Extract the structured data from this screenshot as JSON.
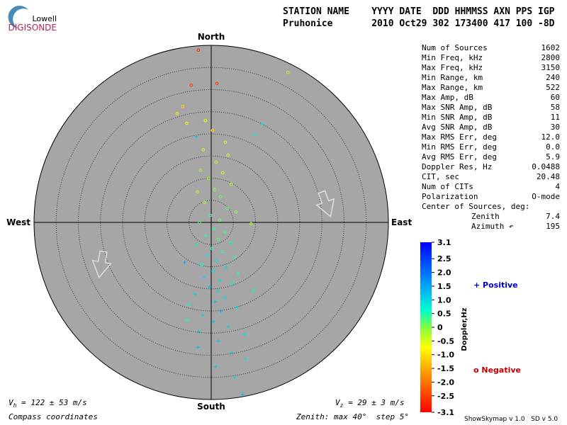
{
  "header": {
    "logo_top": "Lowell",
    "logo_bottom": "DIGISONDE",
    "columns_line": "STATION NAME    YYYY DATE  DDD HHMMSS AXN PPS IGP",
    "values_line": "Pruhonice       2010 Oct29 302 173400 417 100 -8D"
  },
  "skymap": {
    "north": "North",
    "south": "South",
    "east": "East",
    "west": "West",
    "zenith_max": 40,
    "zenith_step": 5,
    "sources": [
      {
        "e": -2.9,
        "n": 38.9,
        "d": -2.8,
        "m": "o"
      },
      {
        "e": -4.5,
        "n": 31,
        "d": -2.6,
        "m": "o"
      },
      {
        "e": 1.3,
        "n": 31.4,
        "d": -2.7,
        "m": "o"
      },
      {
        "e": 17.3,
        "n": 33.9,
        "d": -0.3,
        "m": "o"
      },
      {
        "e": -6.4,
        "n": 26.2,
        "d": -1.0,
        "m": "o"
      },
      {
        "e": -7.7,
        "n": 24.6,
        "d": -0.9,
        "m": "o"
      },
      {
        "e": -1.3,
        "n": 23,
        "d": -0.8,
        "m": "o"
      },
      {
        "e": -3.4,
        "n": 19.4,
        "d": 1.2,
        "m": "+"
      },
      {
        "e": 9.9,
        "n": 19.8,
        "d": 0.8,
        "m": "+"
      },
      {
        "e": 11.5,
        "n": 22.2,
        "d": 0.9,
        "m": "+"
      },
      {
        "e": 0.3,
        "n": 20.8,
        "d": -1.1,
        "m": "o"
      },
      {
        "e": -5.5,
        "n": 22.4,
        "d": -0.7,
        "m": "o"
      },
      {
        "e": 3.2,
        "n": 18.1,
        "d": -0.6,
        "m": "o"
      },
      {
        "e": 3.8,
        "n": 15.2,
        "d": -0.4,
        "m": "o"
      },
      {
        "e": -1.8,
        "n": 16.4,
        "d": -0.5,
        "m": "o"
      },
      {
        "e": 1.1,
        "n": 13.6,
        "d": -0.3,
        "m": "o"
      },
      {
        "e": -2.4,
        "n": 11.8,
        "d": -0.2,
        "m": "o"
      },
      {
        "e": 2.6,
        "n": 11.2,
        "d": -0.6,
        "m": "o"
      },
      {
        "e": -0.6,
        "n": 9.9,
        "d": -0.1,
        "m": "o"
      },
      {
        "e": 4.5,
        "n": 8.6,
        "d": -0.3,
        "m": "o"
      },
      {
        "e": 0.8,
        "n": 7.4,
        "d": 0.0,
        "m": "o"
      },
      {
        "e": -3.1,
        "n": 6.9,
        "d": -0.4,
        "m": "o"
      },
      {
        "e": 2.1,
        "n": 5.8,
        "d": 0.1,
        "m": "o"
      },
      {
        "e": -1.5,
        "n": 4.5,
        "d": -0.2,
        "m": "o"
      },
      {
        "e": 3.6,
        "n": 3.2,
        "d": 0.2,
        "m": "o"
      },
      {
        "e": 5.6,
        "n": 2.4,
        "d": -0.1,
        "m": "o"
      },
      {
        "e": -0.2,
        "n": 1.6,
        "d": 0.3,
        "m": "o"
      },
      {
        "e": 1.9,
        "n": 0.5,
        "d": 0.1,
        "m": "o"
      },
      {
        "e": -2.6,
        "n": 0.0,
        "d": 0.2,
        "m": "o"
      },
      {
        "e": 9.0,
        "n": -0.3,
        "d": -0.2,
        "m": "o"
      },
      {
        "e": 0.6,
        "n": -1.4,
        "d": 0.4,
        "m": "o"
      },
      {
        "e": 3.1,
        "n": -2.2,
        "d": 0.3,
        "m": "o"
      },
      {
        "e": -1.2,
        "n": -3.0,
        "d": 0.5,
        "m": "+"
      },
      {
        "e": 1.6,
        "n": -3.8,
        "d": 0.2,
        "m": "o"
      },
      {
        "e": 4.4,
        "n": -4.6,
        "d": 0.6,
        "m": "o"
      },
      {
        "e": -3.3,
        "n": -5.1,
        "d": 0.7,
        "m": "+"
      },
      {
        "e": 0.2,
        "n": -5.9,
        "d": 0.5,
        "m": "o"
      },
      {
        "e": 2.5,
        "n": -6.6,
        "d": 0.4,
        "m": "o"
      },
      {
        "e": -0.9,
        "n": -7.4,
        "d": 0.8,
        "m": "+"
      },
      {
        "e": 5.2,
        "n": -7.9,
        "d": 0.5,
        "m": "o"
      },
      {
        "e": 1.2,
        "n": -8.7,
        "d": 0.9,
        "m": "o"
      },
      {
        "e": -2.2,
        "n": -9.5,
        "d": 0.6,
        "m": "o"
      },
      {
        "e": 3.4,
        "n": -10.2,
        "d": 1.0,
        "m": "+"
      },
      {
        "e": 0.4,
        "n": -11.0,
        "d": 0.8,
        "m": "o"
      },
      {
        "e": 6.1,
        "n": -11.6,
        "d": 0.4,
        "m": "o"
      },
      {
        "e": -1.6,
        "n": -12.3,
        "d": 1.1,
        "m": "+"
      },
      {
        "e": 2.0,
        "n": -13.1,
        "d": 0.9,
        "m": "o"
      },
      {
        "e": 4.7,
        "n": -13.8,
        "d": 0.7,
        "m": "o"
      },
      {
        "e": -0.4,
        "n": -14.6,
        "d": 1.2,
        "m": "+"
      },
      {
        "e": 1.5,
        "n": -15.5,
        "d": 1.0,
        "m": "o"
      },
      {
        "e": -3.6,
        "n": -16.2,
        "d": 1.1,
        "m": "+"
      },
      {
        "e": 3.0,
        "n": -17.0,
        "d": 0.9,
        "m": "o"
      },
      {
        "e": 0.9,
        "n": -17.9,
        "d": 1.3,
        "m": "+"
      },
      {
        "e": -5.0,
        "n": -18.6,
        "d": 0.6,
        "m": "o"
      },
      {
        "e": 5.8,
        "n": -19.2,
        "d": 0.8,
        "m": "o"
      },
      {
        "e": 2.2,
        "n": -20.1,
        "d": 1.2,
        "m": "+"
      },
      {
        "e": -1.9,
        "n": -21.0,
        "d": 1.0,
        "m": "+"
      },
      {
        "e": 0.5,
        "n": -22.4,
        "d": 1.3,
        "m": "+"
      },
      {
        "e": 3.9,
        "n": -23.5,
        "d": 1.1,
        "m": "+"
      },
      {
        "e": -2.8,
        "n": -24.6,
        "d": 1.2,
        "m": "+"
      },
      {
        "e": 7.5,
        "n": -25.3,
        "d": 0.9,
        "m": "o"
      },
      {
        "e": 1.6,
        "n": -26.8,
        "d": 1.2,
        "m": "+"
      },
      {
        "e": -3.0,
        "n": -28.2,
        "d": 1.3,
        "m": "+"
      },
      {
        "e": 4.6,
        "n": -29.4,
        "d": 1.1,
        "m": "+"
      },
      {
        "e": 7.8,
        "n": -30.8,
        "d": 0.9,
        "m": "+"
      },
      {
        "e": 1.0,
        "n": -32.6,
        "d": 1.2,
        "m": "+"
      },
      {
        "e": 5.3,
        "n": -35.0,
        "d": 1.0,
        "m": "+"
      },
      {
        "e": 7.1,
        "n": -38.9,
        "d": 1.3,
        "m": "+"
      },
      {
        "e": -6.0,
        "n": -9.0,
        "d": 1.4,
        "m": "+"
      },
      {
        "e": 9.5,
        "n": -15.4,
        "d": 0.6,
        "m": "o"
      },
      {
        "e": -5.5,
        "n": -22.0,
        "d": 0.5,
        "m": "o"
      }
    ]
  },
  "stats": [
    [
      "Num of Sources",
      "1602"
    ],
    [
      "Min Freq, kHz",
      "2800"
    ],
    [
      "Max Freq, kHz",
      "3150"
    ],
    [
      "Min Range, km",
      "240"
    ],
    [
      "Max Range, km",
      "522"
    ],
    [
      "Max Amp, dB",
      "60"
    ],
    [
      "Max SNR Amp, dB",
      "58"
    ],
    [
      "Min SNR Amp, dB",
      "11"
    ],
    [
      "Avg SNR Amp, dB",
      "30"
    ],
    [
      "Max RMS Err, deg",
      "12.0"
    ],
    [
      "Min RMS Err, deg",
      "0.0"
    ],
    [
      "Avg RMS Err, deg",
      "5.9"
    ],
    [
      "Doppler Res, Hz",
      "0.0488"
    ],
    [
      "CIT, sec",
      "20.48"
    ],
    [
      "Num of CITs",
      "4"
    ],
    [
      "Polarization",
      "O-mode"
    ]
  ],
  "center": {
    "title": "Center of Sources, deg:",
    "zenith_label": "Zenith",
    "zenith": "7.4",
    "azimuth_label": "Azimuth ↶",
    "azimuth": "195"
  },
  "colorbar": {
    "label": "Doppler,Hz",
    "range": [
      -3.1,
      3.1
    ],
    "ticks": [
      3.1,
      2.5,
      {
        "value": 2,
        "label": "2.0"
      },
      1.5,
      {
        "value": 1,
        "label": "1.0"
      },
      0.5,
      0,
      -0.5,
      {
        "value": -1,
        "label": "-1.0"
      },
      -1.5,
      {
        "value": -2,
        "label": "-2.0"
      },
      -2.5,
      -3.1
    ]
  },
  "legend": {
    "positive": "+ Positive",
    "negative": "o Negative"
  },
  "footer": {
    "vh_symbol": "V",
    "vh_sub": "h",
    "vh_text": " = 122 ± 53 m/s",
    "vz_symbol": "V",
    "vz_sub": "z",
    "vz_text": " = 29 ± 3 m/s",
    "coords": "Compass coordinates",
    "zenith": "Zenith: max 40°  step 5°",
    "version": "ShowSkymap v 1.0   SD v 5.0"
  }
}
